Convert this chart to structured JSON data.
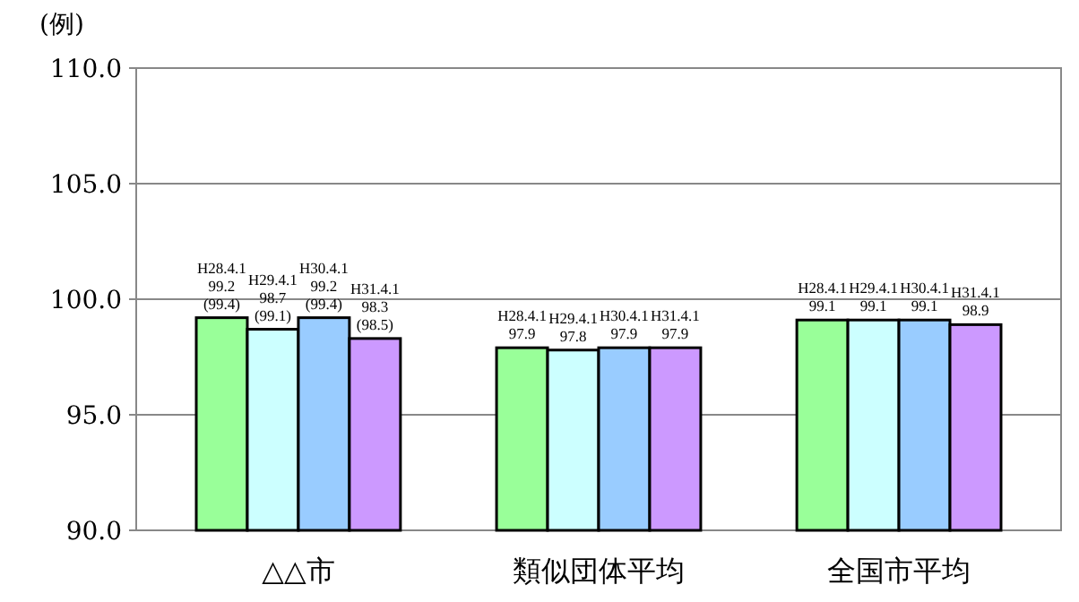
{
  "chart_data": {
    "type": "bar",
    "ylabel": "(例)",
    "categories": [
      "△△市",
      "類似団体平均",
      "全国市平均"
    ],
    "series": [
      {
        "name": "H28.4.1",
        "color": "#99ff99",
        "values": [
          99.2,
          97.9,
          99.1
        ],
        "value_labels": [
          "99.2\n(99.4)",
          "97.9",
          "99.1"
        ]
      },
      {
        "name": "H29.4.1",
        "color": "#ccffff",
        "values": [
          98.7,
          97.8,
          99.1
        ],
        "value_labels": [
          "98.7\n(99.1)",
          "97.8",
          "99.1"
        ]
      },
      {
        "name": "H30.4.1",
        "color": "#99ccff",
        "values": [
          99.2,
          97.9,
          99.1
        ],
        "value_labels": [
          "99.2\n(99.4)",
          "97.9",
          "99.1"
        ]
      },
      {
        "name": "H31.4.1",
        "color": "#cc99ff",
        "values": [
          98.3,
          97.9,
          98.9
        ],
        "value_labels": [
          "98.3\n(98.5)",
          "97.9",
          "98.9"
        ]
      }
    ],
    "ylim": [
      90,
      110
    ],
    "yticks": [
      {
        "value": 90,
        "label": "90.0"
      },
      {
        "value": 95,
        "label": "95.0"
      },
      {
        "value": 100,
        "label": "100.0"
      },
      {
        "value": 105,
        "label": "105.0"
      },
      {
        "value": 110,
        "label": "110.0"
      }
    ],
    "grid": "y"
  }
}
